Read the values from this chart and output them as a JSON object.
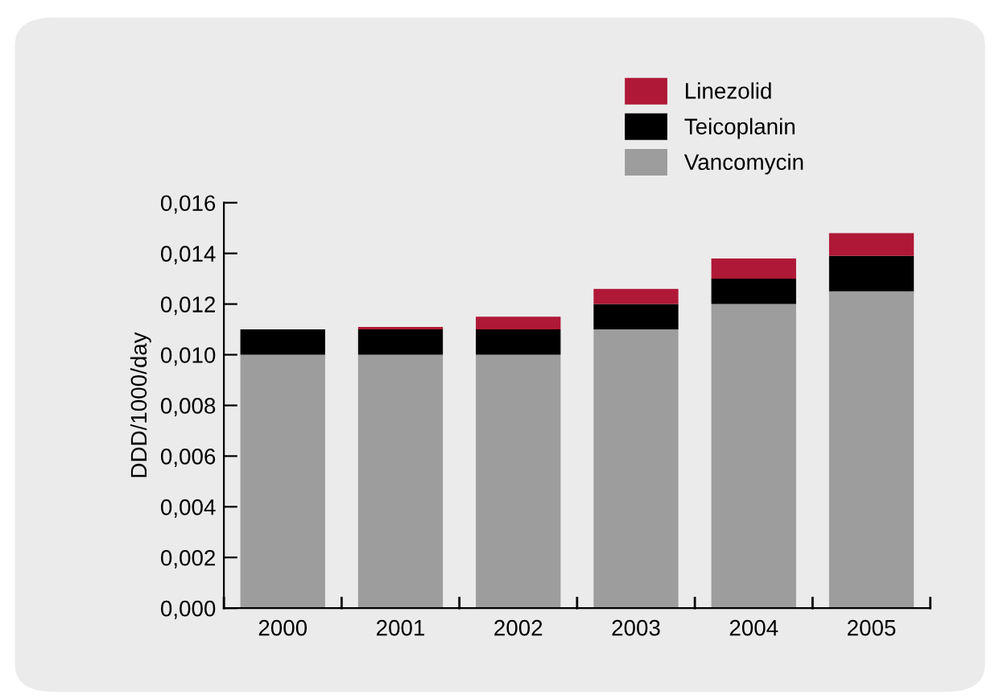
{
  "chart_data": {
    "type": "bar",
    "ylabel": "DDD/1000/day",
    "stacked": true,
    "legend": "top right",
    "grid": false,
    "categories": [
      "2000",
      "2001",
      "2002",
      "2003",
      "2004",
      "2005"
    ],
    "series": [
      {
        "name": "Vancomycin",
        "color": "#9c9d9c",
        "values": [
          0.01,
          0.01,
          0.01,
          0.011,
          0.012,
          0.0125
        ]
      },
      {
        "name": "Teicoplanin",
        "color": "#000000",
        "values": [
          0.001,
          0.001,
          0.001,
          0.001,
          0.001,
          0.0014
        ]
      },
      {
        "name": "Linezolid",
        "color": "#b01837",
        "values": [
          0,
          0.0001,
          0.0005,
          0.0006,
          0.0008,
          0.0009
        ]
      }
    ],
    "ylim": [
      0,
      0.016
    ],
    "yticks": [
      {
        "value": 0,
        "label": "0,000"
      },
      {
        "value": 0.002,
        "label": "0,002"
      },
      {
        "value": 0.004,
        "label": "0,004"
      },
      {
        "value": 0.006,
        "label": "0,006"
      },
      {
        "value": 0.008,
        "label": "0,008"
      },
      {
        "value": 0.01,
        "label": "0,010"
      },
      {
        "value": 0.012,
        "label": "0,012"
      },
      {
        "value": 0.014,
        "label": "0,014"
      },
      {
        "value": 0.016,
        "label": "0,016"
      }
    ]
  }
}
